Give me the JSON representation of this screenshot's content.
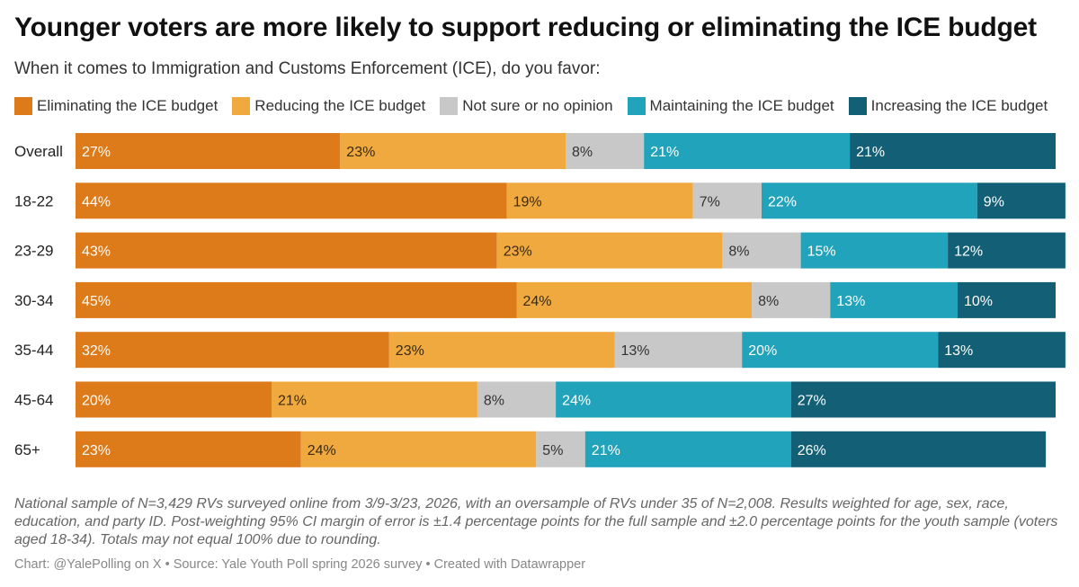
{
  "header": {
    "title": "Younger voters are more likely to support reducing or eliminating the ICE budget",
    "subtitle": "When it comes to Immigration and Customs Enforcement (ICE), do you favor:"
  },
  "legend": [
    {
      "label": "Eliminating the ICE budget",
      "color": "#dd7a1a"
    },
    {
      "label": "Reducing the ICE budget",
      "color": "#f0a93e"
    },
    {
      "label": "Not sure or no opinion",
      "color": "#c8c8c8"
    },
    {
      "label": "Maintaining the ICE budget",
      "color": "#20a3bb"
    },
    {
      "label": "Increasing the ICE budget",
      "color": "#135f76"
    }
  ],
  "chart_data": {
    "type": "bar",
    "orientation": "horizontal",
    "stacked": true,
    "title": "Younger voters are more likely to support reducing or eliminating the ICE budget",
    "subtitle": "When it comes to Immigration and Customs Enforcement (ICE), do you favor:",
    "categories": [
      "Overall",
      "18-22",
      "23-29",
      "30-34",
      "35-44",
      "45-64",
      "65+"
    ],
    "series": [
      {
        "name": "Eliminating the ICE budget",
        "values": [
          27,
          44,
          43,
          45,
          32,
          20,
          23
        ]
      },
      {
        "name": "Reducing the ICE budget",
        "values": [
          23,
          19,
          23,
          24,
          23,
          21,
          24
        ]
      },
      {
        "name": "Not sure or no opinion",
        "values": [
          8,
          7,
          8,
          8,
          13,
          8,
          5
        ]
      },
      {
        "name": "Maintaining the ICE budget",
        "values": [
          21,
          22,
          15,
          13,
          20,
          24,
          21
        ]
      },
      {
        "name": "Increasing the ICE budget",
        "values": [
          21,
          9,
          12,
          10,
          13,
          27,
          26
        ]
      }
    ],
    "value_suffix": "%",
    "xlim": [
      0,
      100
    ],
    "legend_position": "top",
    "grid": false
  },
  "footer": {
    "notes": "National sample of N=3,429 RVs surveyed online from 3/9-3/23, 2026, with an oversample of RVs under 35 of N=2,008. Results weighted for age, sex, race, education, and party ID. Post-weighting 95% CI margin of error is ±1.4 percentage points for the full sample and ±2.0 percentage points for the youth sample (voters aged 18-34). Totals may not equal 100% due to rounding.",
    "credit": "Chart: @YalePolling on X • Source: Yale Youth Poll spring 2026 survey • Created with Datawrapper"
  }
}
